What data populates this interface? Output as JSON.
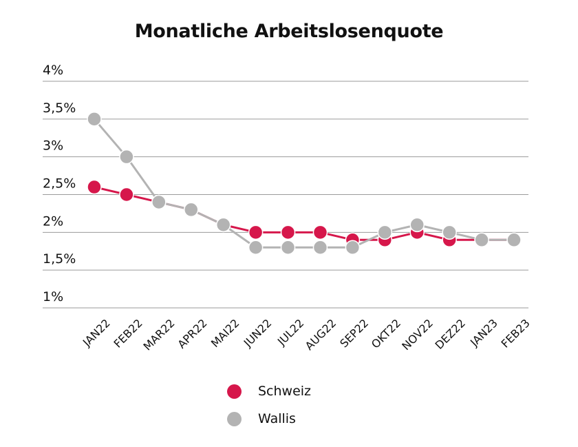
{
  "chart_data": {
    "type": "line",
    "title": "Monatliche Arbeitslosenquote",
    "categories": [
      "JAN22",
      "FEB22",
      "MAR22",
      "APR22",
      "MAI22",
      "JUN22",
      "JUL22",
      "AUG22",
      "SEP22",
      "OKT22",
      "NOV22",
      "DEZ22",
      "JAN23",
      "FEB23"
    ],
    "y_ticks": [
      "4%",
      "3,5%",
      "3%",
      "2,5%",
      "2%",
      "1,5%",
      "1%"
    ],
    "y_tick_values": [
      4,
      3.5,
      3,
      2.5,
      2,
      1.5,
      1
    ],
    "ylim": [
      1,
      4
    ],
    "grid": true,
    "legend_position": "bottom",
    "series": [
      {
        "name": "Schweiz",
        "color": "#d6174b",
        "values": [
          2.6,
          2.5,
          2.4,
          2.3,
          2.1,
          2.0,
          2.0,
          2.0,
          1.9,
          1.9,
          2.0,
          1.9,
          1.9,
          1.9
        ]
      },
      {
        "name": "Wallis",
        "color": "#b3b3b3",
        "values": [
          3.5,
          3.0,
          2.4,
          2.3,
          2.1,
          1.8,
          1.8,
          1.8,
          1.8,
          2.0,
          2.1,
          2.0,
          1.9,
          1.9
        ]
      }
    ]
  }
}
